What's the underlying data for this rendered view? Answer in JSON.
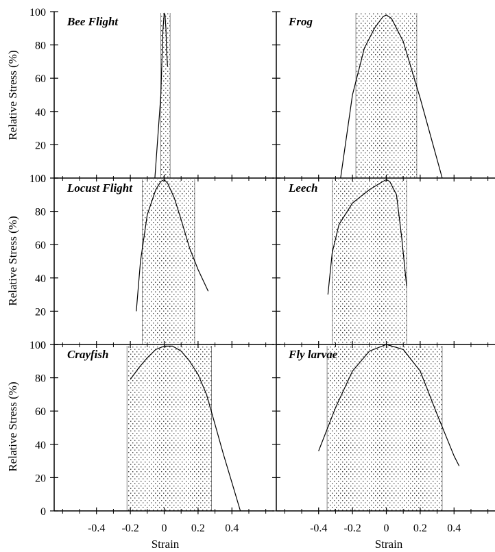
{
  "figure": {
    "ylabel": "Relative Stress (%)",
    "xlabel": "Strain"
  },
  "chart_data": [
    {
      "type": "line",
      "title": "Bee Flight",
      "row": 0,
      "col": 0,
      "xlim": [
        -0.65,
        0.65
      ],
      "ylim": [
        0,
        100
      ],
      "xticks": [
        -0.4,
        -0.2,
        0,
        0.2,
        0.4
      ],
      "yticks": [
        0,
        20,
        40,
        60,
        80,
        100
      ],
      "shaded_range": [
        -0.02,
        0.035
      ],
      "series": [
        {
          "x": [
            -0.055,
            -0.02,
            -0.008,
            0,
            0.005,
            0.01,
            0.015,
            0.02
          ],
          "y": [
            0,
            50,
            88,
            99,
            98,
            90,
            75,
            67
          ]
        }
      ]
    },
    {
      "type": "line",
      "title": "Frog",
      "row": 0,
      "col": 1,
      "xlim": [
        -0.65,
        0.65
      ],
      "ylim": [
        0,
        100
      ],
      "xticks": [
        -0.4,
        -0.2,
        0,
        0.2,
        0.4
      ],
      "yticks": [
        0,
        20,
        40,
        60,
        80,
        100
      ],
      "shaded_range": [
        -0.18,
        0.18
      ],
      "series": [
        {
          "x": [
            -0.27,
            -0.2,
            -0.13,
            -0.07,
            -0.02,
            0,
            0.03,
            0.1,
            0.2,
            0.33
          ],
          "y": [
            0,
            50,
            78,
            90,
            97,
            98,
            96,
            82,
            48,
            0
          ]
        }
      ]
    },
    {
      "type": "line",
      "title": "Locust Flight",
      "row": 1,
      "col": 0,
      "xlim": [
        -0.65,
        0.65
      ],
      "ylim": [
        0,
        100
      ],
      "xticks": [
        -0.4,
        -0.2,
        0,
        0.2,
        0.4
      ],
      "yticks": [
        0,
        20,
        40,
        60,
        80,
        100
      ],
      "shaded_range": [
        -0.13,
        0.18
      ],
      "series": [
        {
          "x": [
            -0.165,
            -0.14,
            -0.1,
            -0.05,
            -0.02,
            0,
            0.02,
            0.06,
            0.1,
            0.15,
            0.2,
            0.26
          ],
          "y": [
            20,
            50,
            78,
            93,
            98,
            99,
            97,
            88,
            75,
            58,
            45,
            32
          ]
        }
      ]
    },
    {
      "type": "line",
      "title": "Leech",
      "row": 1,
      "col": 1,
      "xlim": [
        -0.65,
        0.65
      ],
      "ylim": [
        0,
        100
      ],
      "xticks": [
        -0.4,
        -0.2,
        0,
        0.2,
        0.4
      ],
      "yticks": [
        0,
        20,
        40,
        60,
        80,
        100
      ],
      "shaded_range": [
        -0.32,
        0.12
      ],
      "series": [
        {
          "x": [
            -0.345,
            -0.32,
            -0.28,
            -0.2,
            -0.1,
            -0.02,
            0,
            0.02,
            0.06,
            0.09,
            0.12
          ],
          "y": [
            30,
            55,
            72,
            85,
            93,
            98,
            99,
            98,
            90,
            65,
            35
          ]
        }
      ]
    },
    {
      "type": "line",
      "title": "Crayfish",
      "row": 2,
      "col": 0,
      "xlim": [
        -0.65,
        0.65
      ],
      "ylim": [
        0,
        100
      ],
      "xticks": [
        -0.4,
        -0.2,
        0,
        0.2,
        0.4
      ],
      "yticks": [
        0,
        20,
        40,
        60,
        80,
        100
      ],
      "shaded_range": [
        -0.22,
        0.28
      ],
      "series": [
        {
          "x": [
            -0.2,
            -0.15,
            -0.1,
            -0.05,
            0,
            0.05,
            0.1,
            0.15,
            0.2,
            0.25,
            0.3,
            0.35,
            0.4,
            0.45
          ],
          "y": [
            79,
            86,
            92,
            97,
            99,
            99,
            96,
            90,
            82,
            70,
            52,
            34,
            17,
            0
          ]
        }
      ]
    },
    {
      "type": "line",
      "title": "Fly larvae",
      "row": 2,
      "col": 1,
      "xlim": [
        -0.65,
        0.65
      ],
      "ylim": [
        0,
        100
      ],
      "xticks": [
        -0.4,
        -0.2,
        0,
        0.2,
        0.4
      ],
      "yticks": [
        0,
        20,
        40,
        60,
        80,
        100
      ],
      "shaded_range": [
        -0.35,
        0.33
      ],
      "series": [
        {
          "x": [
            -0.4,
            -0.3,
            -0.2,
            -0.1,
            0,
            0.1,
            0.2,
            0.3,
            0.4,
            0.43
          ],
          "y": [
            36,
            62,
            84,
            96,
            100,
            97,
            84,
            58,
            33,
            27
          ]
        }
      ]
    }
  ]
}
